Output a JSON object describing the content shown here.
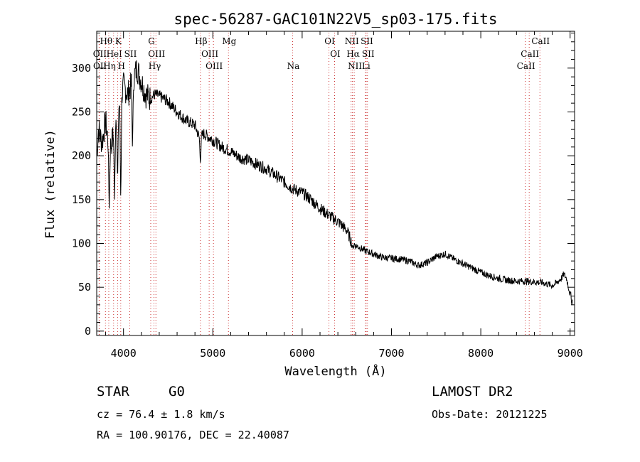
{
  "chart_data": {
    "type": "line",
    "title": "spec-56287-GAC101N22V5_sp03-175.fits",
    "xlabel": "Wavelength (Å)",
    "ylabel": "Flux (relative)",
    "xlim": [
      3700,
      9050
    ],
    "ylim": [
      -5,
      342
    ],
    "xticks": [
      4000,
      5000,
      6000,
      7000,
      8000,
      9000
    ],
    "yticks": [
      0,
      50,
      100,
      150,
      200,
      250,
      300
    ],
    "grid": false,
    "line_color": "#000000",
    "marker_color": "#cc3333",
    "spectral_lines": [
      {
        "name": "Hθ",
        "row": 0,
        "wavelengths": [
          3798
        ]
      },
      {
        "name": "K",
        "row": 0,
        "wavelengths": [
          3934
        ]
      },
      {
        "name": "OII",
        "row": 1,
        "wavelengths": [
          3727
        ]
      },
      {
        "name": "HeI",
        "row": 1,
        "wavelengths": [
          3889
        ]
      },
      {
        "name": "SII",
        "row": 1,
        "wavelengths": [
          4070
        ]
      },
      {
        "name": "OII",
        "row": 2,
        "wavelengths": [
          3729
        ]
      },
      {
        "name": "Hη",
        "row": 2,
        "wavelengths": [
          3835
        ]
      },
      {
        "name": "H",
        "row": 2,
        "wavelengths": [
          3969
        ]
      },
      {
        "name": "G",
        "row": 0,
        "wavelengths": [
          4305
        ]
      },
      {
        "name": "OIII",
        "row": 1,
        "wavelengths": [
          4363
        ]
      },
      {
        "name": "Hγ",
        "row": 2,
        "wavelengths": [
          4341
        ]
      },
      {
        "name": "Hβ",
        "row": 0,
        "wavelengths": [
          4861
        ]
      },
      {
        "name": "OIII",
        "row": 1,
        "wavelengths": [
          4959
        ]
      },
      {
        "name": "OIII",
        "row": 2,
        "wavelengths": [
          5007
        ]
      },
      {
        "name": "Mg",
        "row": 0,
        "wavelengths": [
          5175
        ]
      },
      {
        "name": "Na",
        "row": 2,
        "wavelengths": [
          5893
        ]
      },
      {
        "name": "OI",
        "row": 0,
        "wavelengths": [
          6300
        ]
      },
      {
        "name": "OI",
        "row": 1,
        "wavelengths": [
          6363
        ]
      },
      {
        "name": "NII",
        "row": 0,
        "wavelengths": [
          6548
        ]
      },
      {
        "name": "SII",
        "row": 0,
        "wavelengths": [
          6717
        ]
      },
      {
        "name": "Hα",
        "row": 1,
        "wavelengths": [
          6563
        ]
      },
      {
        "name": "SII",
        "row": 1,
        "wavelengths": [
          6731
        ]
      },
      {
        "name": "NII",
        "row": 2,
        "wavelengths": [
          6583
        ]
      },
      {
        "name": "Li",
        "row": 2,
        "wavelengths": [
          6708
        ]
      },
      {
        "name": "CaII",
        "row": 0,
        "wavelengths": [
          8662
        ]
      },
      {
        "name": "CaII",
        "row": 1,
        "wavelengths": [
          8542
        ]
      },
      {
        "name": "CaII",
        "row": 2,
        "wavelengths": [
          8498
        ]
      }
    ],
    "spectrum_anchors": {
      "x": [
        3700,
        3720,
        3760,
        3800,
        3840,
        3880,
        3920,
        3960,
        4000,
        4050,
        4100,
        4150,
        4200,
        4250,
        4300,
        4350,
        4400,
        4500,
        4600,
        4700,
        4800,
        4850,
        4900,
        5000,
        5100,
        5200,
        5300,
        5400,
        5500,
        5600,
        5700,
        5800,
        5900,
        6000,
        6100,
        6200,
        6300,
        6400,
        6500,
        6560,
        6700,
        6800,
        6900,
        7000,
        7100,
        7200,
        7300,
        7400,
        7500,
        7600,
        7700,
        7800,
        7900,
        8000,
        8100,
        8200,
        8300,
        8400,
        8500,
        8600,
        8700,
        8800,
        8850,
        8900,
        8930,
        8960,
        9000,
        9030
      ],
      "y": [
        200,
        230,
        215,
        240,
        205,
        220,
        245,
        260,
        280,
        270,
        285,
        300,
        285,
        270,
        265,
        270,
        268,
        262,
        250,
        240,
        235,
        220,
        225,
        218,
        210,
        205,
        198,
        195,
        190,
        185,
        178,
        170,
        162,
        158,
        150,
        140,
        132,
        125,
        115,
        100,
        92,
        88,
        84,
        83,
        82,
        80,
        75,
        78,
        85,
        88,
        82,
        77,
        72,
        67,
        63,
        60,
        58,
        57,
        57,
        56,
        55,
        52,
        55,
        60,
        65,
        60,
        42,
        38
      ]
    },
    "dips": [
      {
        "x": 3840,
        "y": 140
      },
      {
        "x": 3900,
        "y": 150
      },
      {
        "x": 3934,
        "y": 165
      },
      {
        "x": 3969,
        "y": 145
      },
      {
        "x": 4101,
        "y": 205
      },
      {
        "x": 4861,
        "y": 190
      },
      {
        "x": 6563,
        "y": 95
      },
      {
        "x": 9020,
        "y": 30
      }
    ]
  },
  "info": {
    "object_class": "STAR",
    "subclass": "G0",
    "survey": "LAMOST DR2",
    "redshift": "cz = 76.4 ± 1.8 km/s",
    "obs_date": "Obs-Date: 20121225",
    "coords": "RA = 100.90176, DEC =  22.40087"
  }
}
